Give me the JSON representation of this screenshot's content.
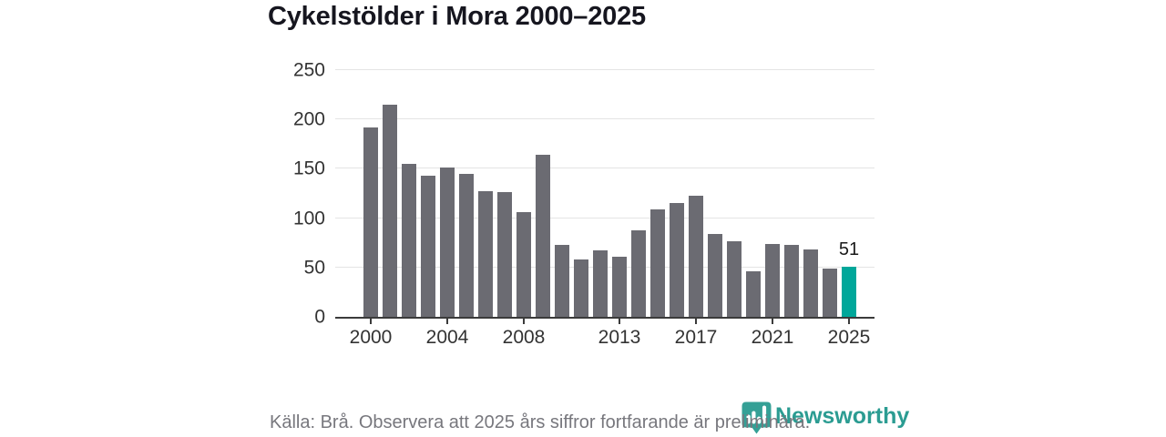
{
  "title": "Cykelstölder i Mora 2000–2025",
  "footer": {
    "source_note": "Källa: Brå. Observera att 2025 års siffror fortfarande är preliminära.",
    "brand": "Newsworthy"
  },
  "colors": {
    "bar": "#6b6b72",
    "highlight": "#00a79a",
    "grid": "#e4e4e4",
    "axis": "#3b3b3b",
    "title_text": "#16161f",
    "tick_text": "#333333",
    "muted_text": "#77777d",
    "brand_teal": "#2b9c92"
  },
  "chart_data": {
    "type": "bar",
    "title": "Cykelstölder i Mora 2000–2025",
    "categories": [
      2000,
      2001,
      2002,
      2003,
      2004,
      2005,
      2006,
      2007,
      2008,
      2009,
      2010,
      2011,
      2012,
      2013,
      2014,
      2015,
      2016,
      2017,
      2018,
      2019,
      2020,
      2021,
      2022,
      2023,
      2024,
      2025
    ],
    "values": [
      192,
      215,
      155,
      143,
      151,
      145,
      127,
      126,
      106,
      164,
      73,
      58,
      67,
      61,
      88,
      109,
      115,
      123,
      84,
      77,
      46,
      74,
      73,
      68,
      49,
      51
    ],
    "highlight_index": 25,
    "highlight_label": "51",
    "bar_color": "#6b6b72",
    "highlight_color": "#00a79a",
    "xticks": [
      2000,
      2004,
      2008,
      2013,
      2017,
      2021,
      2025
    ],
    "yticks": [
      0,
      50,
      100,
      150,
      200,
      250
    ],
    "ylim": [
      0,
      250
    ],
    "grid": true,
    "legend": "none",
    "xlabel": "",
    "ylabel": ""
  }
}
